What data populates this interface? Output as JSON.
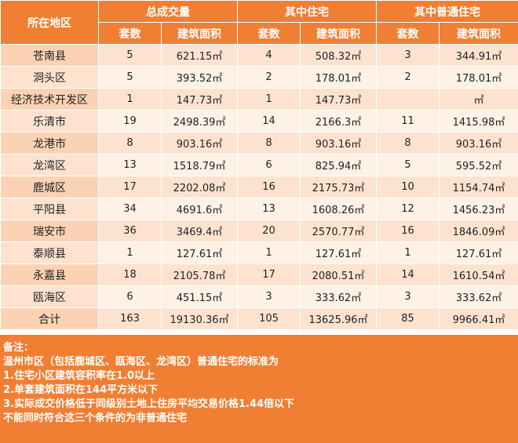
{
  "headers": {
    "region": "所在地区",
    "group_total": "总成交量",
    "group_residential": "其中住宅",
    "group_ordinary": "其中普通住宅",
    "count": "套数",
    "area": "建筑面积"
  },
  "rows": [
    {
      "region": "苍南县",
      "total_count": "5",
      "total_area": "621.15㎡",
      "res_count": "4",
      "res_area": "508.32㎡",
      "ord_count": "3",
      "ord_area": "344.91㎡"
    },
    {
      "region": "洞头区",
      "total_count": "5",
      "total_area": "393.52㎡",
      "res_count": "2",
      "res_area": "178.01㎡",
      "ord_count": "2",
      "ord_area": "178.01㎡"
    },
    {
      "region": "经济技术开发区",
      "total_count": "1",
      "total_area": "147.73㎡",
      "res_count": "1",
      "res_area": "147.73㎡",
      "ord_count": "",
      "ord_area": "㎡"
    },
    {
      "region": "乐清市",
      "total_count": "19",
      "total_area": "2498.39㎡",
      "res_count": "14",
      "res_area": "2166.3㎡",
      "ord_count": "11",
      "ord_area": "1415.98㎡"
    },
    {
      "region": "龙港市",
      "total_count": "8",
      "total_area": "903.16㎡",
      "res_count": "8",
      "res_area": "903.16㎡",
      "ord_count": "8",
      "ord_area": "903.16㎡"
    },
    {
      "region": "龙湾区",
      "total_count": "13",
      "total_area": "1518.79㎡",
      "res_count": "6",
      "res_area": "825.94㎡",
      "ord_count": "5",
      "ord_area": "595.52㎡"
    },
    {
      "region": "鹿城区",
      "total_count": "17",
      "total_area": "2202.08㎡",
      "res_count": "16",
      "res_area": "2175.73㎡",
      "ord_count": "10",
      "ord_area": "1154.74㎡"
    },
    {
      "region": "平阳县",
      "total_count": "34",
      "total_area": "4691.6㎡",
      "res_count": "13",
      "res_area": "1608.26㎡",
      "ord_count": "12",
      "ord_area": "1456.23㎡"
    },
    {
      "region": "瑞安市",
      "total_count": "36",
      "total_area": "3469.4㎡",
      "res_count": "20",
      "res_area": "2570.77㎡",
      "ord_count": "16",
      "ord_area": "1846.09㎡"
    },
    {
      "region": "泰顺县",
      "total_count": "1",
      "total_area": "127.61㎡",
      "res_count": "1",
      "res_area": "127.61㎡",
      "ord_count": "1",
      "ord_area": "127.61㎡"
    },
    {
      "region": "永嘉县",
      "total_count": "18",
      "total_area": "2105.78㎡",
      "res_count": "17",
      "res_area": "2080.51㎡",
      "ord_count": "14",
      "ord_area": "1610.54㎡"
    },
    {
      "region": "瓯海区",
      "total_count": "6",
      "total_area": "451.15㎡",
      "res_count": "3",
      "res_area": "333.62㎡",
      "ord_count": "3",
      "ord_area": "333.62㎡"
    },
    {
      "region": "合计",
      "total_count": "163",
      "total_area": "19130.36㎡",
      "res_count": "105",
      "res_area": "13625.96㎡",
      "ord_count": "85",
      "ord_area": "9966.41㎡"
    }
  ],
  "note": {
    "title": "备注：",
    "lines": [
      "温州市区（包括鹿城区、瓯海区、龙湾区）普通住宅的标准为",
      "1.住宅小区建筑容积率在1.0以上",
      "2.单套建筑面积在144平方米以下",
      "3.实际成交价格低于同级别土地上住房平均交易价格1.44倍以下",
      "不能同时符合这三个条件的为非普通住宅"
    ]
  },
  "colors": {
    "header": "#f07f33",
    "row_dark": "#fde3cf",
    "row_light": "#fef1e6"
  }
}
